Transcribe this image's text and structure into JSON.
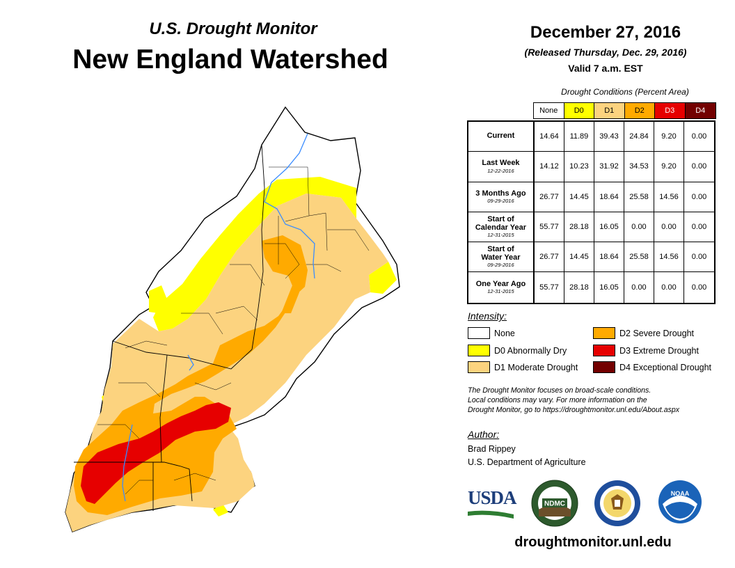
{
  "header": {
    "title": "U.S. Drought Monitor",
    "region": "New England Watershed"
  },
  "date": {
    "main": "December 27, 2016",
    "released": "(Released Thursday, Dec. 29, 2016)",
    "valid": "Valid 7 a.m. EST"
  },
  "table": {
    "caption": "Drought Conditions (Percent Area)",
    "columns": [
      "None",
      "D0",
      "D1",
      "D2",
      "D3",
      "D4"
    ],
    "rows": [
      {
        "label": "Current",
        "sub": "",
        "values": [
          "14.64",
          "11.89",
          "39.43",
          "24.84",
          "9.20",
          "0.00"
        ]
      },
      {
        "label": "Last Week",
        "sub": "12-22-2016",
        "values": [
          "14.12",
          "10.23",
          "31.92",
          "34.53",
          "9.20",
          "0.00"
        ]
      },
      {
        "label": "3 Months Ago",
        "sub": "09-29-2016",
        "values": [
          "26.77",
          "14.45",
          "18.64",
          "25.58",
          "14.56",
          "0.00"
        ]
      },
      {
        "label": "Start of Calendar Year",
        "sub": "12-31-2015",
        "values": [
          "55.77",
          "28.18",
          "16.05",
          "0.00",
          "0.00",
          "0.00"
        ]
      },
      {
        "label": "Start of Water Year",
        "sub": "09-29-2016",
        "values": [
          "26.77",
          "14.45",
          "18.64",
          "25.58",
          "14.56",
          "0.00"
        ]
      },
      {
        "label": "One Year Ago",
        "sub": "12-31-2015",
        "values": [
          "55.77",
          "28.18",
          "16.05",
          "0.00",
          "0.00",
          "0.00"
        ]
      }
    ]
  },
  "colors": {
    "none": "#ffffff",
    "d0": "#ffff00",
    "d1": "#fcd37f",
    "d2": "#ffaa00",
    "d3": "#e60000",
    "d4": "#730000"
  },
  "legend": {
    "title": "Intensity:",
    "items": [
      {
        "label": "None"
      },
      {
        "label": "D0 Abnormally Dry"
      },
      {
        "label": "D1 Moderate Drought"
      },
      {
        "label": "D2 Severe Drought"
      },
      {
        "label": "D3 Extreme Drought"
      },
      {
        "label": "D4 Exceptional Drought"
      }
    ]
  },
  "note": {
    "line1": "The Drought Monitor focuses on broad-scale conditions.",
    "line2": "Local conditions may vary. For more information on the",
    "line3": "Drought Monitor, go to https://droughtmonitor.unl.edu/About.aspx"
  },
  "author": {
    "title": "Author:",
    "name": "Brad Rippey",
    "org": "U.S. Department of Agriculture"
  },
  "logos": {
    "usda": "USDA",
    "ndmc": "NDMC",
    "noaa": "NOAA"
  },
  "website": "droughtmonitor.unl.edu"
}
